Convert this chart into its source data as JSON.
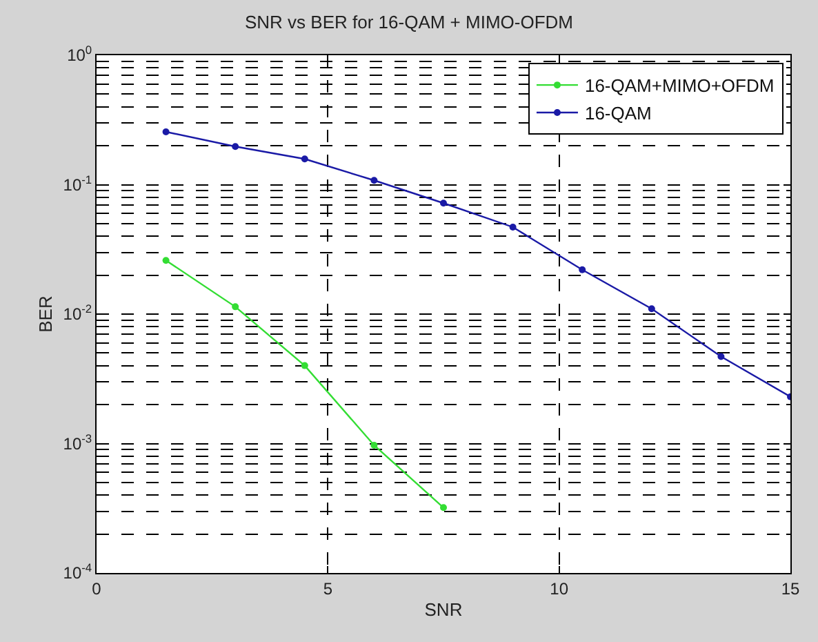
{
  "chart_data": {
    "type": "line",
    "title": "SNR vs BER for 16-QAM + MIMO-OFDM",
    "xlabel": "SNR",
    "ylabel": "BER",
    "log": "y",
    "grid": true,
    "legend": "top right",
    "marker": "circle",
    "line_style": "solid",
    "xlim": [
      0,
      15
    ],
    "xticks": [
      0,
      5,
      10,
      15
    ],
    "ylim": [
      0.0001,
      1
    ],
    "yticks": [
      {
        "value": 0.0001,
        "label": "10$^{-4}$"
      },
      {
        "value": 0.001,
        "label": "10$^{-3}$"
      },
      {
        "value": 0.01,
        "label": "10$^{-2}$"
      },
      {
        "value": 0.1,
        "label": "10$^{-1}$"
      },
      {
        "value": 1,
        "label": "10$^{0}$"
      }
    ],
    "series": [
      {
        "name": "16-QAM+MIMO+OFDM",
        "color": "#33dd33",
        "x": [
          1.5,
          3,
          4.5,
          6,
          7.5
        ],
        "values": [
          0.026,
          0.0114,
          0.004,
          0.00097,
          0.00032
        ]
      },
      {
        "name": "16-QAM",
        "color": "#1a1aa6",
        "x": [
          1.5,
          3,
          4.5,
          6,
          7.5,
          9,
          10.5,
          12,
          13.5,
          15
        ],
        "values": [
          0.256,
          0.197,
          0.158,
          0.108,
          0.072,
          0.047,
          0.022,
          0.011,
          0.0047,
          0.0023
        ]
      }
    ]
  }
}
